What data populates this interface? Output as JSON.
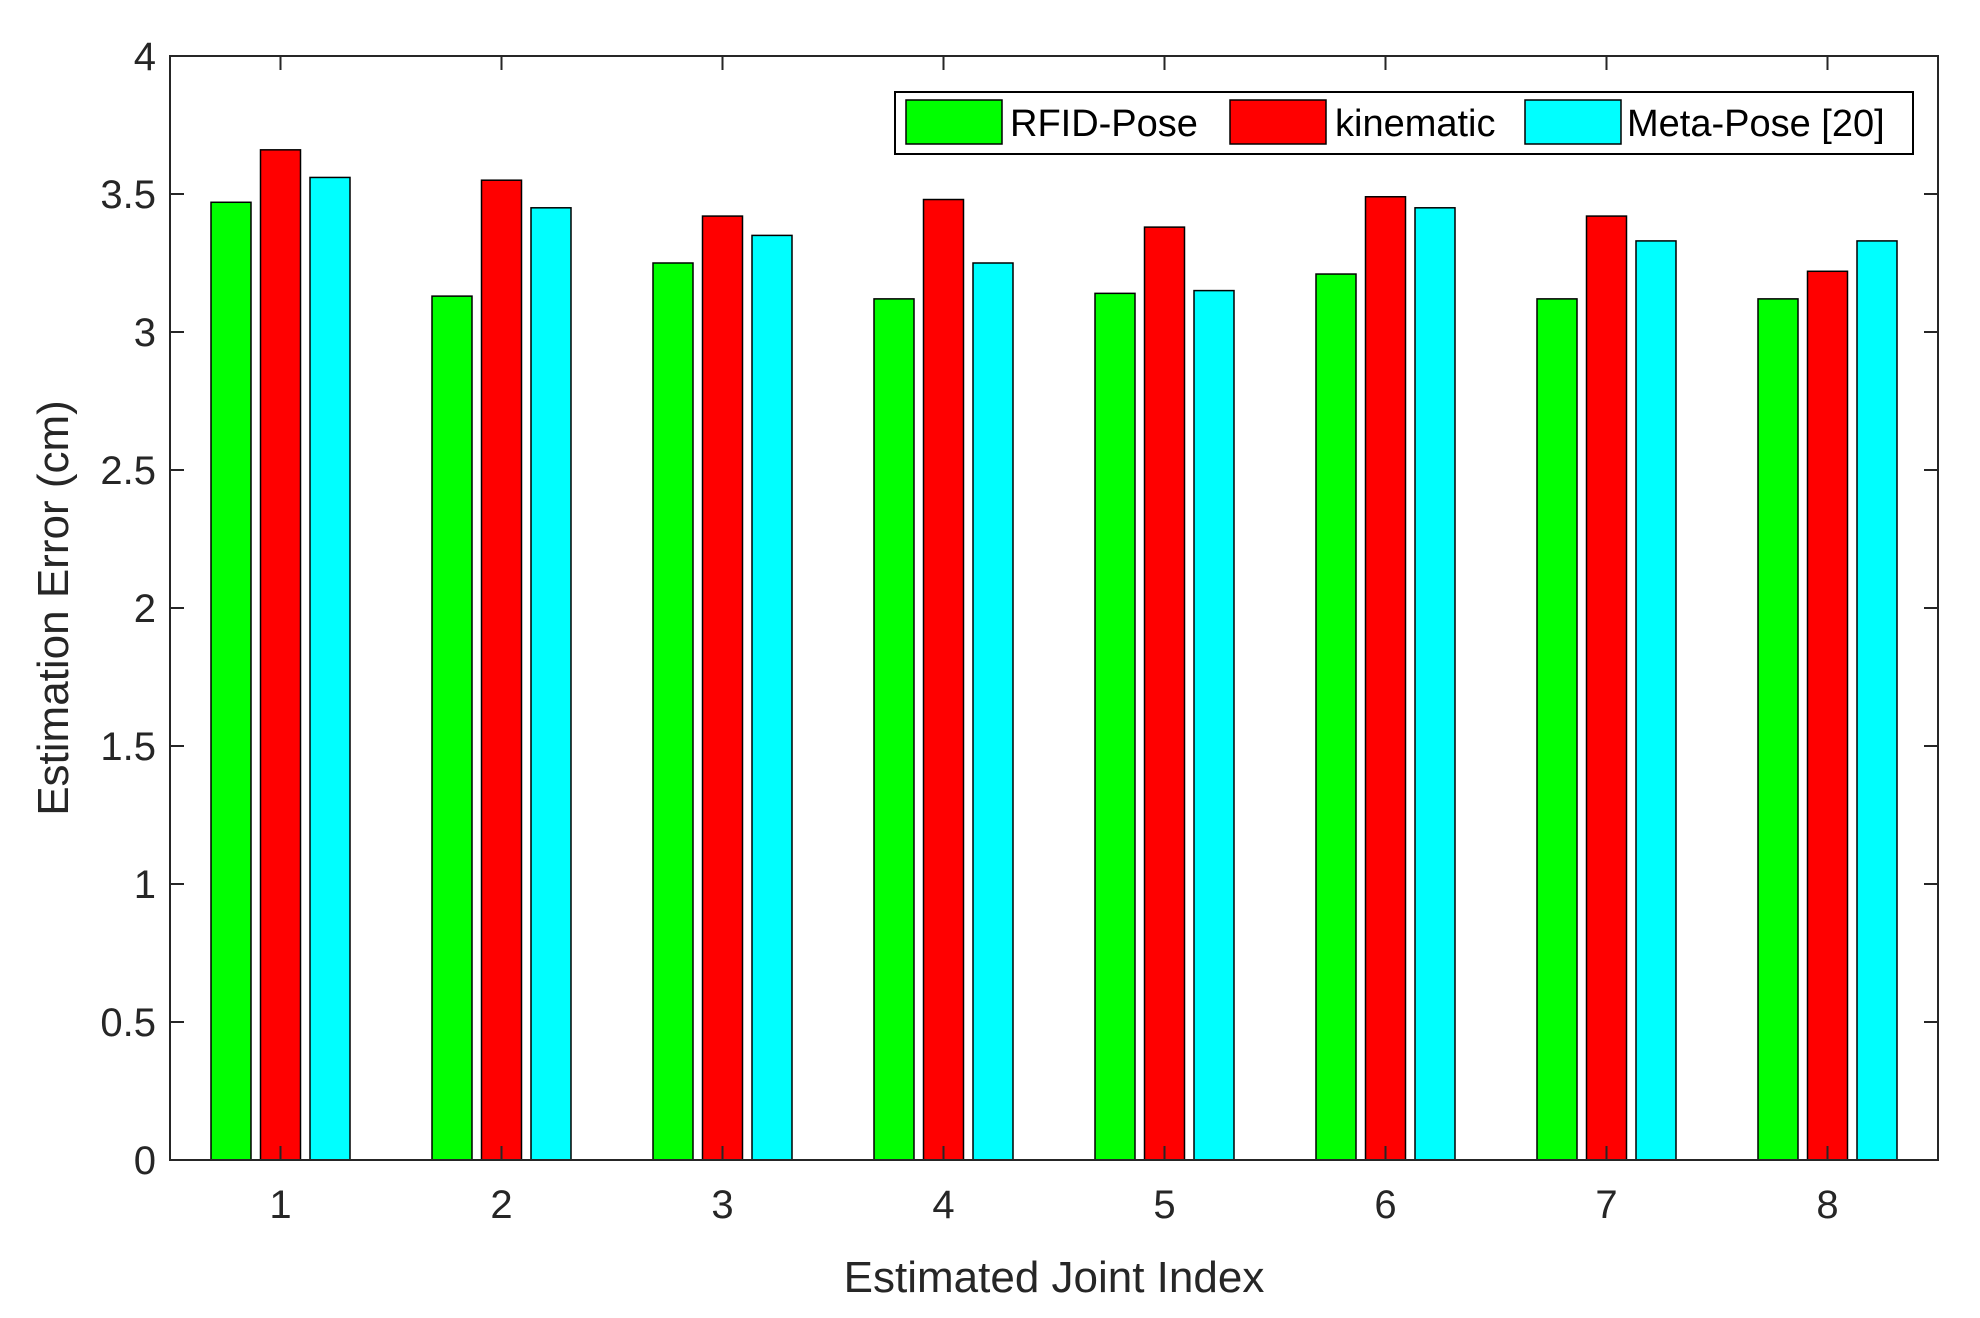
{
  "chart_data": {
    "type": "bar",
    "title": "",
    "xlabel": "Estimated Joint Index",
    "ylabel": "Estimation Error (cm)",
    "categories": [
      "1",
      "2",
      "3",
      "4",
      "5",
      "6",
      "7",
      "8"
    ],
    "ylim": [
      0,
      4
    ],
    "yticks": [
      "0",
      "0.5",
      "1",
      "1.5",
      "2",
      "2.5",
      "3",
      "3.5",
      "4"
    ],
    "grid": false,
    "legend_position": "top-right",
    "series": [
      {
        "name": "RFID-Pose",
        "color": "#00ff00",
        "values": [
          3.47,
          3.13,
          3.25,
          3.12,
          3.14,
          3.21,
          3.12,
          3.12
        ]
      },
      {
        "name": "kinematic",
        "color": "#ff0000",
        "values": [
          3.66,
          3.55,
          3.42,
          3.48,
          3.38,
          3.49,
          3.42,
          3.22
        ]
      },
      {
        "name": "Meta-Pose [20]",
        "color": "#00ffff",
        "values": [
          3.56,
          3.45,
          3.35,
          3.25,
          3.15,
          3.45,
          3.33,
          3.33
        ]
      }
    ]
  }
}
